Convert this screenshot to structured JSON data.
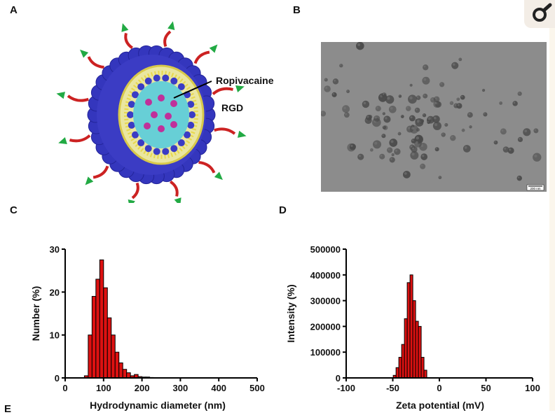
{
  "panels": {
    "a": {
      "letter": "A",
      "label_drug": "Ropivacaine",
      "label_ligand": "RGD"
    },
    "b": {
      "letter": "B",
      "scale_bar": "200 nm"
    },
    "c": {
      "letter": "C"
    },
    "d": {
      "letter": "D"
    },
    "e": {
      "letter": "E"
    }
  },
  "toolbar": {
    "icon": "magnifier-icon"
  },
  "colors": {
    "bar_fill": "#dd1111",
    "bar_stroke": "#000000",
    "lipid_blue": "#3b3cc4",
    "core_cyan": "#67cfd6"
  },
  "chart_data": [
    {
      "type": "bar",
      "xlabel": "Hydrodynamic diameter (nm)",
      "ylabel": "Number (%)",
      "xlim": [
        0,
        500
      ],
      "ylim": [
        0,
        30
      ],
      "xticks": [
        "0",
        "100",
        "200",
        "300",
        "400",
        "500"
      ],
      "yticks": [
        "0",
        "10",
        "20",
        "30"
      ],
      "bin_width": 10,
      "x": [
        55,
        65,
        75,
        85,
        95,
        105,
        115,
        125,
        135,
        145,
        155,
        165,
        175,
        185,
        195,
        205,
        215,
        225
      ],
      "values": [
        0.5,
        10,
        19,
        23,
        27.5,
        21,
        14,
        10,
        6,
        3.5,
        2,
        1.2,
        0.5,
        0.8,
        0.3,
        0.2,
        0.2,
        0.1
      ]
    },
    {
      "type": "bar",
      "xlabel": "Zeta potential (mV)",
      "ylabel": "Intensity (%)",
      "xlim": [
        -100,
        100
      ],
      "ylim": [
        0,
        500000
      ],
      "xticks": [
        "-100",
        "-50",
        "0",
        "50",
        "100"
      ],
      "yticks": [
        "0",
        "100000",
        "200000",
        "300000",
        "400000",
        "500000"
      ],
      "bin_width": 3,
      "x": [
        -48,
        -45,
        -42,
        -39,
        -36,
        -33,
        -30,
        -27,
        -24,
        -21,
        -18,
        -15
      ],
      "values": [
        10000,
        40000,
        80000,
        130000,
        230000,
        370000,
        400000,
        300000,
        220000,
        200000,
        80000,
        30000
      ]
    }
  ]
}
